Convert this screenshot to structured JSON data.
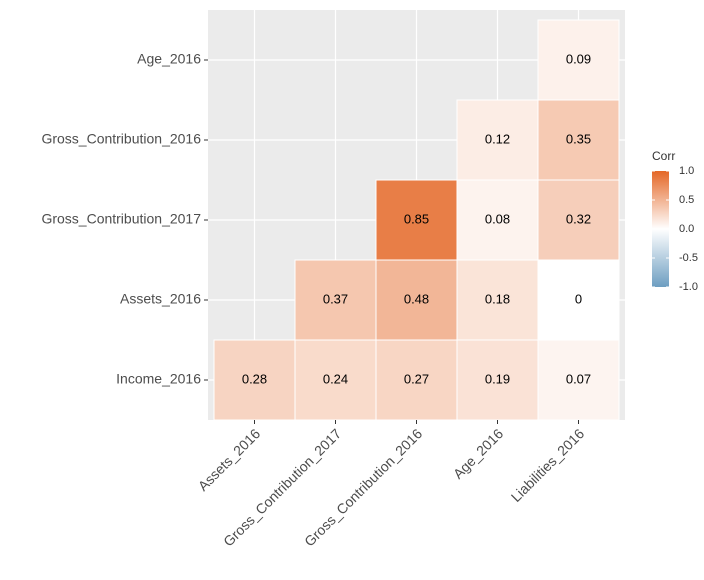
{
  "chart_data": {
    "type": "heatmap",
    "x": [
      "Assets_2016",
      "Gross_Contribution_2017",
      "Gross_Contribution_2016",
      "Age_2016",
      "Liabilities_2016"
    ],
    "y": [
      "Age_2016",
      "Gross_Contribution_2016",
      "Gross_Contribution_2017",
      "Assets_2016",
      "Income_2016"
    ],
    "values": [
      [
        null,
        null,
        null,
        null,
        0.09
      ],
      [
        null,
        null,
        null,
        0.12,
        0.35
      ],
      [
        null,
        null,
        0.85,
        0.08,
        0.32
      ],
      [
        null,
        0.37,
        0.48,
        0.18,
        0
      ],
      [
        0.28,
        0.24,
        0.27,
        0.19,
        0.07
      ]
    ],
    "legend_title": "Corr",
    "clim": [
      -1,
      1
    ],
    "legend_ticks": [
      {
        "value": 1,
        "label": "1.0"
      },
      0.5,
      {
        "value": 0,
        "label": "0.0"
      },
      -0.5,
      {
        "value": -1,
        "label": "-1.0"
      }
    ],
    "colors": {
      "low": "#6D9EC1",
      "mid": "#FFFFFF",
      "high": "#E46726"
    },
    "panel_background": "#EBEBEB"
  }
}
